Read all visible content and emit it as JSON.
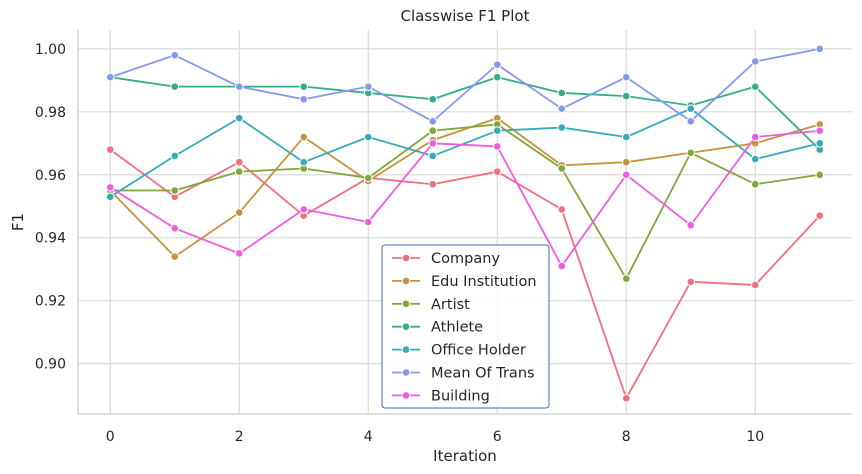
{
  "chart_data": {
    "type": "line",
    "title": "Classwise F1 Plot",
    "xlabel": "Iteration",
    "ylabel": "F1",
    "x": [
      0,
      1,
      2,
      3,
      4,
      5,
      6,
      7,
      8,
      9,
      10,
      11
    ],
    "xlim": [
      -0.5,
      11.5
    ],
    "ylim": [
      0.884,
      1.006
    ],
    "xticks": [
      0,
      2,
      4,
      6,
      8,
      10
    ],
    "xtick_labels": [
      "0",
      "2",
      "4",
      "6",
      "8",
      "10"
    ],
    "yticks": [
      0.9,
      0.92,
      0.94,
      0.96,
      0.98,
      1.0
    ],
    "ytick_labels": [
      "0.90",
      "0.92",
      "0.94",
      "0.96",
      "0.98",
      "1.00"
    ],
    "grid": true,
    "legend_position": "bottom-center",
    "series": [
      {
        "name": "Company",
        "color": "#f0707f",
        "values": [
          0.968,
          0.953,
          0.964,
          0.947,
          0.959,
          0.957,
          0.961,
          0.949,
          0.889,
          0.926,
          0.925,
          0.947
        ]
      },
      {
        "name": "Edu Institution",
        "color": "#c5933c",
        "values": [
          0.955,
          0.934,
          0.948,
          0.972,
          0.958,
          0.971,
          0.978,
          0.963,
          0.964,
          0.967,
          0.97,
          0.976
        ]
      },
      {
        "name": "Artist",
        "color": "#82a63a",
        "values": [
          0.955,
          0.955,
          0.961,
          0.962,
          0.959,
          0.974,
          0.976,
          0.962,
          0.927,
          0.967,
          0.957,
          0.96
        ]
      },
      {
        "name": "Athlete",
        "color": "#35ad8a",
        "values": [
          0.991,
          0.988,
          0.988,
          0.988,
          0.986,
          0.984,
          0.991,
          0.986,
          0.985,
          0.982,
          0.988,
          0.968
        ]
      },
      {
        "name": "Office Holder",
        "color": "#38a9b8",
        "values": [
          0.953,
          0.966,
          0.978,
          0.964,
          0.972,
          0.966,
          0.974,
          0.975,
          0.972,
          0.981,
          0.965,
          0.97
        ]
      },
      {
        "name": "Mean Of Trans",
        "color": "#8697ef",
        "values": [
          0.991,
          0.998,
          0.988,
          0.984,
          0.988,
          0.977,
          0.995,
          0.981,
          0.991,
          0.977,
          0.996,
          1.0
        ]
      },
      {
        "name": "Building",
        "color": "#ef5ce0",
        "values": [
          0.956,
          0.943,
          0.935,
          0.949,
          0.945,
          0.97,
          0.969,
          0.931,
          0.96,
          0.944,
          0.972,
          0.974
        ]
      }
    ]
  }
}
